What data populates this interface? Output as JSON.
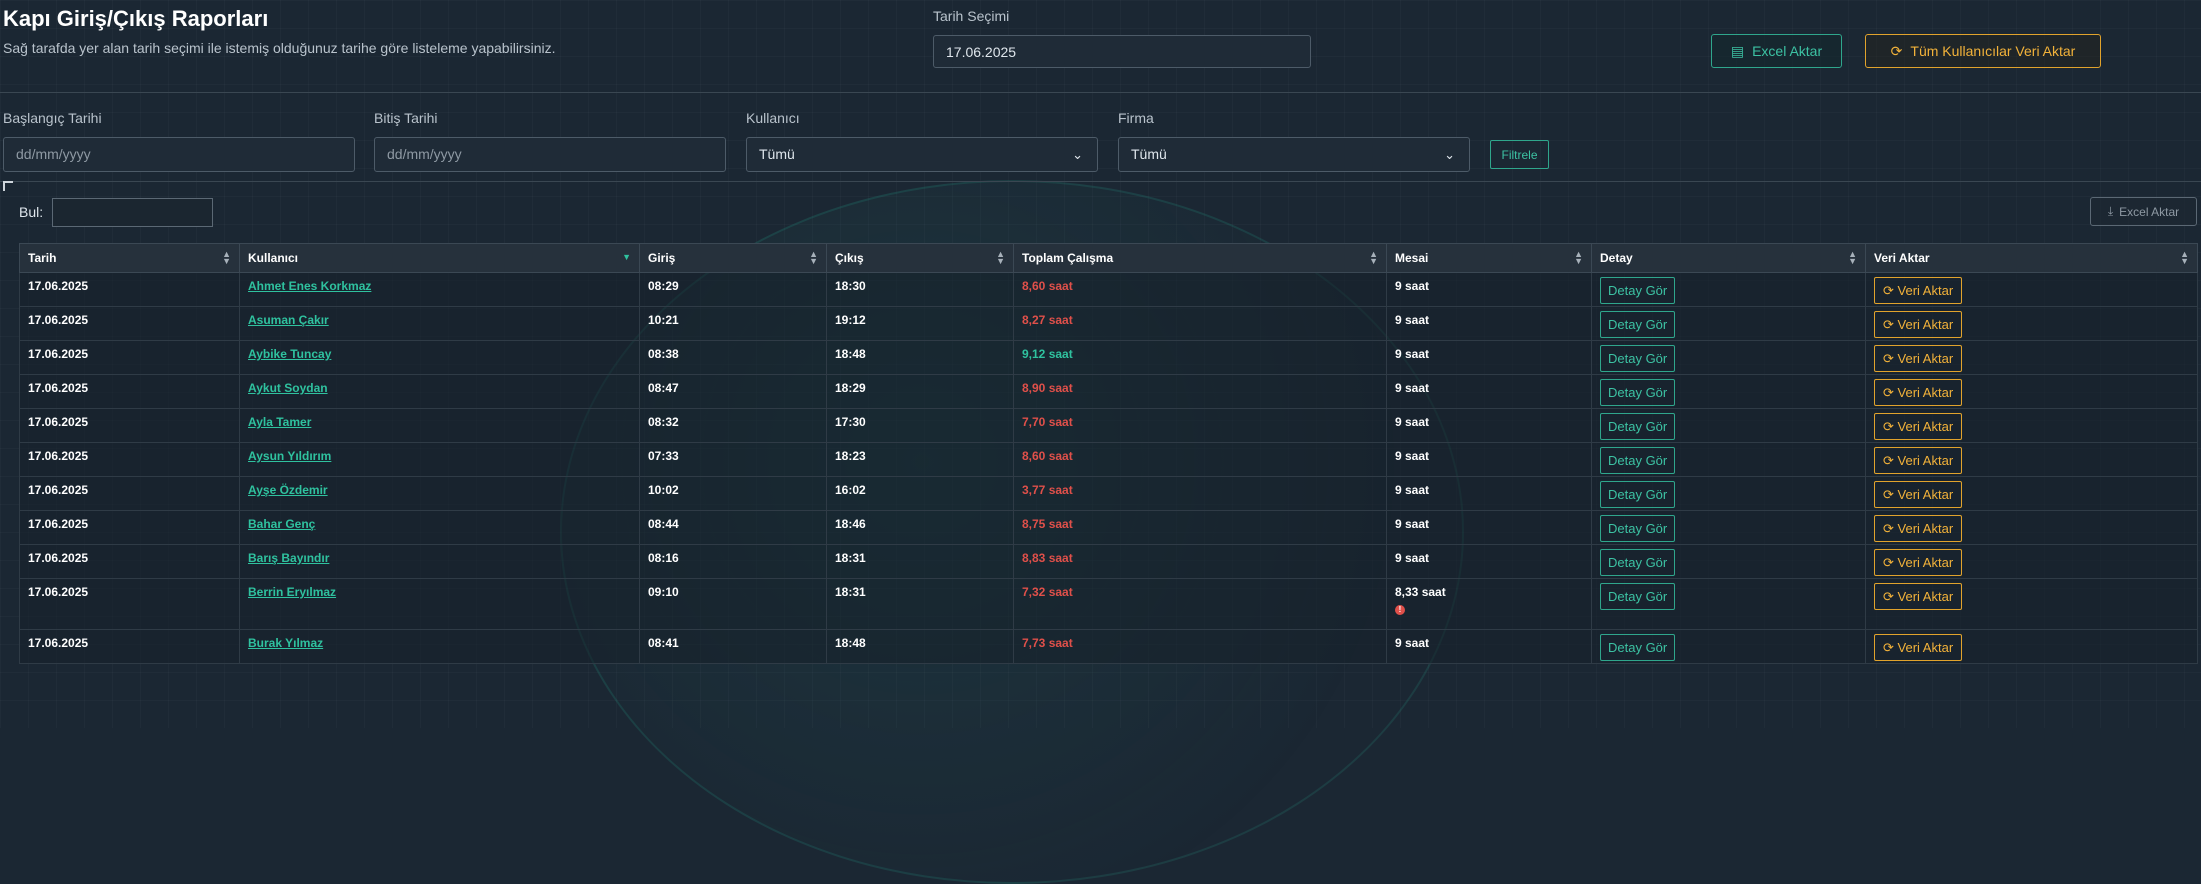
{
  "header": {
    "title": "Kapı Giriş/Çıkış Raporları",
    "subtitle": "Sağ tarafda yer alan tarih seçimi ile istemiş olduğunuz tarihe göre listeleme yapabilirsiniz.",
    "date_label": "Tarih Seçimi",
    "date_value": "17.06.2025",
    "excel_button": "Excel Aktar",
    "all_users_button": "Tüm Kullanıcılar Veri Aktar"
  },
  "filters": {
    "start_label": "Başlangıç Tarihi",
    "start_placeholder": "dd/mm/yyyy",
    "end_label": "Bitiş Tarihi",
    "end_placeholder": "dd/mm/yyyy",
    "user_label": "Kullanıcı",
    "user_value": "Tümü",
    "company_label": "Firma",
    "company_value": "Tümü",
    "filter_button": "Filtrele"
  },
  "table_tools": {
    "search_label": "Bul:",
    "excel_button": "Excel Aktar"
  },
  "table": {
    "columns": [
      "Tarih",
      "Kullanıcı",
      "Giriş",
      "Çıkış",
      "Toplam Çalışma",
      "Mesai",
      "Detay",
      "Veri Aktar"
    ],
    "detail_button": "Detay Gör",
    "export_button": "Veri Aktar",
    "rows": [
      {
        "date": "17.06.2025",
        "user": "Ahmet Enes Korkmaz",
        "in": "08:29",
        "out": "18:30",
        "total": "8,60 saat",
        "overtime": "9 saat"
      },
      {
        "date": "17.06.2025",
        "user": "Asuman Çakır",
        "in": "10:21",
        "out": "19:12",
        "total": "8,27 saat",
        "overtime": "9 saat"
      },
      {
        "date": "17.06.2025",
        "user": "Aybike Tuncay",
        "in": "08:38",
        "out": "18:48",
        "total": "9,12 saat",
        "overtime": "9 saat"
      },
      {
        "date": "17.06.2025",
        "user": "Aykut Soydan",
        "in": "08:47",
        "out": "18:29",
        "total": "8,90 saat",
        "overtime": "9 saat"
      },
      {
        "date": "17.06.2025",
        "user": "Ayla Tamer",
        "in": "08:32",
        "out": "17:30",
        "total": "7,70 saat",
        "overtime": "9 saat"
      },
      {
        "date": "17.06.2025",
        "user": "Aysun Yıldırım",
        "in": "07:33",
        "out": "18:23",
        "total": "8,60 saat",
        "overtime": "9 saat"
      },
      {
        "date": "17.06.2025",
        "user": "Ayşe Özdemir",
        "in": "10:02",
        "out": "16:02",
        "total": "3,77 saat",
        "overtime": "9 saat"
      },
      {
        "date": "17.06.2025",
        "user": "Bahar Genç",
        "in": "08:44",
        "out": "18:46",
        "total": "8,75 saat",
        "overtime": "9 saat"
      },
      {
        "date": "17.06.2025",
        "user": "Barış Bayındır",
        "in": "08:16",
        "out": "18:31",
        "total": "8,83 saat",
        "overtime": "9 saat"
      },
      {
        "date": "17.06.2025",
        "user": "Berrin Eryılmaz",
        "in": "09:10",
        "out": "18:31",
        "total": "7,32 saat",
        "overtime": "8,33 saat"
      },
      {
        "date": "17.06.2025",
        "user": "Burak Yılmaz",
        "in": "08:41",
        "out": "18:48",
        "total": "7,73 saat",
        "overtime": "9 saat"
      }
    ]
  },
  "colors": {
    "accent_green": "#2fc29f",
    "accent_orange": "#f2b23a",
    "danger_red": "#e0504a",
    "background": "#1b2733"
  }
}
